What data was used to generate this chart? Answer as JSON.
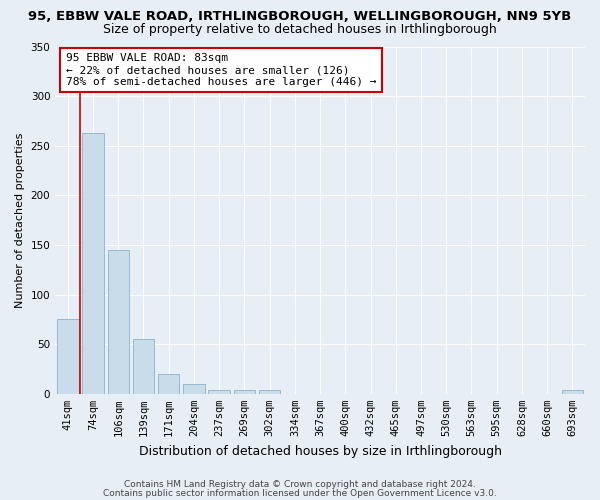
{
  "title": "95, EBBW VALE ROAD, IRTHLINGBOROUGH, WELLINGBOROUGH, NN9 5YB",
  "subtitle": "Size of property relative to detached houses in Irthlingborough",
  "xlabel": "Distribution of detached houses by size in Irthlingborough",
  "ylabel": "Number of detached properties",
  "categories": [
    "41sqm",
    "74sqm",
    "106sqm",
    "139sqm",
    "171sqm",
    "204sqm",
    "237sqm",
    "269sqm",
    "302sqm",
    "334sqm",
    "367sqm",
    "400sqm",
    "432sqm",
    "465sqm",
    "497sqm",
    "530sqm",
    "563sqm",
    "595sqm",
    "628sqm",
    "660sqm",
    "693sqm"
  ],
  "values": [
    75,
    263,
    145,
    55,
    20,
    10,
    4,
    4,
    4,
    0,
    0,
    0,
    0,
    0,
    0,
    0,
    0,
    0,
    0,
    0,
    4
  ],
  "bar_color": "#c8dcea",
  "bar_edge_color": "#8ab4cc",
  "red_line_x": 0.5,
  "ylim": [
    0,
    350
  ],
  "yticks": [
    0,
    50,
    100,
    150,
    200,
    250,
    300,
    350
  ],
  "annotation_title": "95 EBBW VALE ROAD: 83sqm",
  "annotation_line1": "← 22% of detached houses are smaller (126)",
  "annotation_line2": "78% of semi-detached houses are larger (446) →",
  "footer1": "Contains HM Land Registry data © Crown copyright and database right 2024.",
  "footer2": "Contains public sector information licensed under the Open Government Licence v3.0.",
  "bg_color": "#e8eef5",
  "plot_bg_color": "#e8eef5",
  "grid_color": "#ffffff",
  "title_fontsize": 9.5,
  "subtitle_fontsize": 9,
  "xlabel_fontsize": 9,
  "ylabel_fontsize": 8,
  "tick_fontsize": 7.5,
  "annotation_fontsize": 8,
  "footer_fontsize": 6.5
}
